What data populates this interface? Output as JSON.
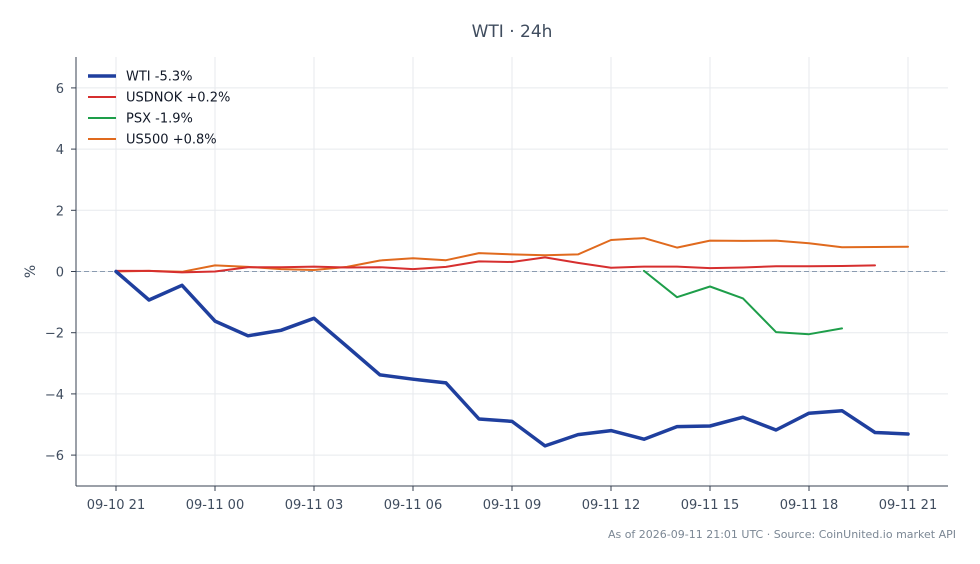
{
  "chart_data": {
    "type": "line",
    "title": "WTI · 24h",
    "ylabel": "%",
    "xlabel": "",
    "x_ticks": [
      "09-10 21",
      "09-11 00",
      "09-11 03",
      "09-11 06",
      "09-11 09",
      "09-11 12",
      "09-11 15",
      "09-11 18",
      "09-11 21"
    ],
    "y_ticks": [
      -6,
      -4,
      -2,
      0,
      2,
      4,
      6
    ],
    "xlim": [
      0,
      24.7
    ],
    "ylim": [
      -7,
      7
    ],
    "grid": true,
    "zero_line": true,
    "legend_position": "top-left",
    "series": [
      {
        "name": "WTI -5.3%",
        "color": "#1f3f9e",
        "line_width": 3.5,
        "x": [
          0,
          1,
          2,
          3,
          4,
          5,
          6,
          7,
          8,
          9,
          10,
          11,
          12,
          13,
          14,
          15,
          16,
          17,
          18,
          19,
          20,
          21,
          22,
          23,
          24
        ],
        "y": [
          0.0,
          -0.93,
          -0.45,
          -1.62,
          -2.1,
          -1.92,
          -1.53,
          -2.45,
          -3.38,
          -3.52,
          -3.64,
          -4.82,
          -4.9,
          -5.7,
          -5.33,
          -5.2,
          -5.48,
          -5.07,
          -5.05,
          -4.76,
          -5.18,
          -4.63,
          -4.55,
          -5.26,
          -5.31
        ]
      },
      {
        "name": "USDNOK +0.2%",
        "color": "#d62f2f",
        "line_width": 2,
        "x": [
          0,
          1,
          2,
          3,
          4,
          5,
          6,
          7,
          8,
          9,
          10,
          11,
          12,
          13,
          14,
          15,
          16,
          17,
          18,
          19,
          20,
          21,
          22,
          23
        ],
        "y": [
          0.02,
          0.02,
          -0.03,
          0.0,
          0.14,
          0.14,
          0.16,
          0.13,
          0.14,
          0.08,
          0.15,
          0.33,
          0.31,
          0.46,
          0.28,
          0.12,
          0.16,
          0.16,
          0.11,
          0.13,
          0.17,
          0.17,
          0.18,
          0.2
        ]
      },
      {
        "name": "PSX -1.9%",
        "color": "#1e9e4a",
        "line_width": 2,
        "x": [
          16,
          17,
          18,
          19,
          20,
          21,
          22
        ],
        "y": [
          0.02,
          -0.84,
          -0.49,
          -0.88,
          -1.98,
          -2.05,
          -1.86
        ]
      },
      {
        "name": "US500 +0.8%",
        "color": "#e06a1e",
        "line_width": 2,
        "x": [
          0,
          1,
          2,
          3,
          4,
          5,
          6,
          7,
          8,
          9,
          10,
          11,
          12,
          13,
          14,
          15,
          16,
          17,
          18,
          19,
          20,
          21,
          22,
          23,
          24
        ],
        "y": [
          0.0,
          0.02,
          -0.01,
          0.2,
          0.15,
          0.08,
          0.05,
          0.15,
          0.36,
          0.43,
          0.37,
          0.6,
          0.56,
          0.53,
          0.56,
          1.03,
          1.09,
          0.78,
          1.01,
          1.0,
          1.01,
          0.92,
          0.79,
          0.8,
          0.81
        ]
      }
    ],
    "footer": "As of 2026-09-11 21:01 UTC · Source: CoinUnited.io market API"
  },
  "colors": {
    "zero_line": "#8a9bb0",
    "grid": "#e7eaee",
    "axis": "#374151"
  }
}
